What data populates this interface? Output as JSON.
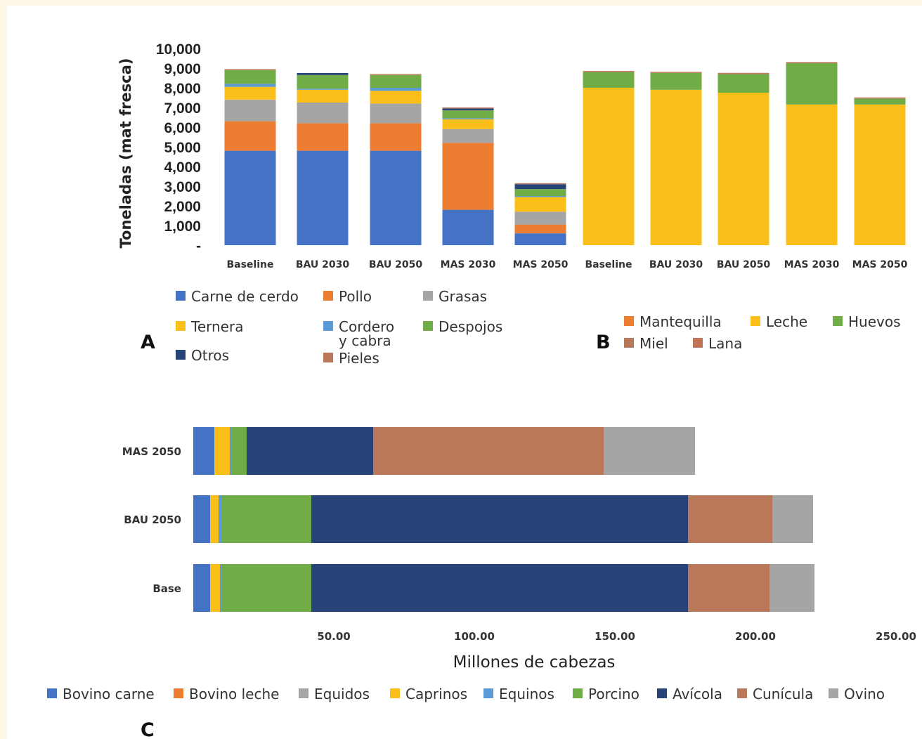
{
  "chart_data": [
    {
      "panel_label": "A",
      "type": "bar",
      "stacked": true,
      "ylabel": "Toneladas (mat fresca)",
      "ylim": [
        0,
        10000
      ],
      "yticks": [
        "-",
        "1,000",
        "2,000",
        "3,000",
        "4,000",
        "5,000",
        "6,000",
        "7,000",
        "8,000",
        "9,000",
        "10,000"
      ],
      "categories": [
        "Baseline",
        "BAU 2030",
        "BAU 2050",
        "MAS 2030",
        "MAS 2050"
      ],
      "series": [
        {
          "name": "Carne de cerdo",
          "color": "#4472c4",
          "values": [
            4800,
            4800,
            4800,
            1800,
            600
          ]
        },
        {
          "name": "Pollo",
          "color": "#ed7d31",
          "values": [
            1500,
            1400,
            1400,
            3400,
            450
          ]
        },
        {
          "name": "Grasas",
          "color": "#a5a5a5",
          "values": [
            1100,
            1050,
            1000,
            700,
            650
          ]
        },
        {
          "name": "Ternera",
          "color": "#fbbf1a",
          "values": [
            650,
            650,
            650,
            500,
            750
          ]
        },
        {
          "name": "Cordero y cabra",
          "color": "#5b9bd5",
          "values": [
            150,
            50,
            150,
            50,
            50
          ]
        },
        {
          "name": "Despojos",
          "color": "#70ad47",
          "values": [
            700,
            700,
            650,
            400,
            350
          ]
        },
        {
          "name": "Otros",
          "color": "#264478",
          "values": [
            0,
            100,
            0,
            100,
            250
          ]
        },
        {
          "name": "Pieles",
          "color": "#b9785a",
          "values": [
            50,
            0,
            50,
            50,
            50
          ]
        }
      ],
      "legend": [
        {
          "label": "Carne de cerdo",
          "color": "#4472c4"
        },
        {
          "label": "Pollo",
          "color": "#ed7d31"
        },
        {
          "label": "Grasas",
          "color": "#a5a5a5"
        },
        {
          "label": "Ternera",
          "color": "#fbbf1a"
        },
        {
          "label": "Cordero",
          "label2": "y  cabra",
          "color": "#5b9bd5"
        },
        {
          "label": "Despojos",
          "color": "#70ad47"
        },
        {
          "label": "Otros",
          "color": "#264478"
        },
        {
          "label": "Pieles",
          "color": "#b9785a"
        }
      ]
    },
    {
      "panel_label": "B",
      "type": "bar",
      "stacked": true,
      "ylim": [
        0,
        10000
      ],
      "categories": [
        "Baseline",
        "BAU 2030",
        "BAU 2050",
        "MAS 2030",
        "MAS 2050"
      ],
      "series": [
        {
          "name": "Mantequilla",
          "color": "#ed7d31",
          "values": [
            0,
            0,
            0,
            0,
            0
          ]
        },
        {
          "name": "Leche",
          "color": "#fbbf1a",
          "values": [
            8000,
            7900,
            7750,
            7150,
            7150
          ]
        },
        {
          "name": "Huevos",
          "color": "#70ad47",
          "values": [
            800,
            850,
            950,
            2100,
            300
          ]
        },
        {
          "name": "Miel",
          "color": "#b5785a",
          "values": [
            30,
            30,
            30,
            30,
            30
          ]
        },
        {
          "name": "Lana",
          "color": "#c27257",
          "values": [
            30,
            30,
            30,
            30,
            30
          ]
        }
      ],
      "legend": [
        {
          "label": "Mantequilla",
          "color": "#ed7d31"
        },
        {
          "label": "Leche",
          "color": "#fbbf1a"
        },
        {
          "label": "Huevos",
          "color": "#70ad47"
        },
        {
          "label": "Miel",
          "color": "#b5785a"
        },
        {
          "label": "Lana",
          "color": "#c27257"
        }
      ]
    },
    {
      "panel_label": "C",
      "type": "bar",
      "orientation": "horizontal",
      "stacked": true,
      "xlabel": "Millones de cabezas",
      "xlim": [
        0,
        250
      ],
      "xticks": [
        "50.00",
        "100.00",
        "150.00",
        "200.00",
        "250.00"
      ],
      "categories": [
        "MAS 2050",
        "BAU 2050",
        "Base"
      ],
      "series": [
        {
          "name": "Bovino carne",
          "color": "#4472c4",
          "values": [
            7.5,
            6,
            6
          ]
        },
        {
          "name": "Bovino leche",
          "color": "#ed7d31",
          "values": [
            0,
            0,
            0
          ]
        },
        {
          "name": "Equidos",
          "color": "#a5a5a5",
          "values": [
            0,
            0,
            0
          ]
        },
        {
          "name": "Caprinos",
          "color": "#fbbf1a",
          "values": [
            5.5,
            3,
            3.5
          ]
        },
        {
          "name": "Equinos",
          "color": "#5b9bd5",
          "values": [
            0.5,
            1,
            0.5
          ]
        },
        {
          "name": "Porcino",
          "color": "#70ad47",
          "values": [
            5.5,
            32,
            32
          ]
        },
        {
          "name": "Avícola",
          "color": "#264478",
          "values": [
            45,
            134,
            134
          ]
        },
        {
          "name": "Cunícula",
          "color": "#b9785a",
          "values": [
            82,
            30,
            29
          ]
        },
        {
          "name": "Ovino",
          "color": "#a5a5a5",
          "values": [
            32.5,
            14.5,
            16
          ]
        }
      ],
      "legend": [
        {
          "label": "Bovino carne",
          "color": "#4472c4"
        },
        {
          "label": "Bovino leche",
          "color": "#ed7d31"
        },
        {
          "label": "Equidos",
          "color": "#a5a5a5"
        },
        {
          "label": "Caprinos",
          "color": "#fbbf1a"
        },
        {
          "label": "Equinos",
          "color": "#5b9bd5"
        },
        {
          "label": "Porcino",
          "color": "#70ad47"
        },
        {
          "label": "Avícola",
          "color": "#264478"
        },
        {
          "label": "Cunícula",
          "color": "#b9785a"
        },
        {
          "label": "Ovino",
          "color": "#a5a5a5"
        }
      ]
    }
  ]
}
